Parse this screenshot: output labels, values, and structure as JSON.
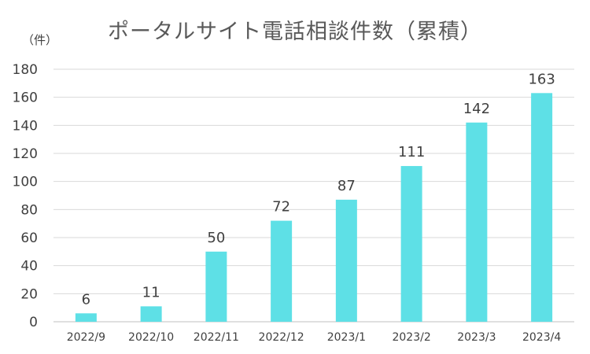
{
  "chart_data": {
    "type": "bar",
    "title": "ポータルサイト電話相談件数（累積）",
    "ylabel": "（件）",
    "xlabel": "",
    "categories": [
      "2022/9",
      "2022/10",
      "2022/11",
      "2022/12",
      "2023/1",
      "2023/2",
      "2023/3",
      "2023/4"
    ],
    "values": [
      6,
      11,
      50,
      72,
      87,
      111,
      142,
      163
    ],
    "ylim": [
      0,
      180
    ],
    "yticks": [
      0,
      20,
      40,
      60,
      80,
      100,
      120,
      140,
      160,
      180
    ],
    "grid": true,
    "legend": "none",
    "data_labels": true,
    "bar_color": "#5ee0e6"
  }
}
